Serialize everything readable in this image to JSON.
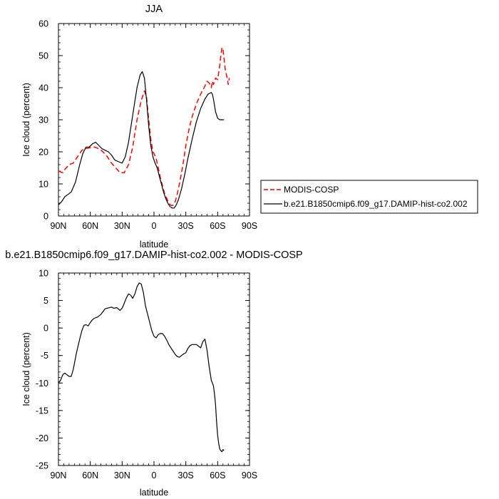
{
  "chart_data": [
    {
      "type": "line",
      "title": "JJA",
      "xlabel": "latitude",
      "ylabel": "Ice cloud (percent)",
      "xlim": [
        90,
        -90
      ],
      "ylim": [
        0,
        60
      ],
      "x_tick_values": [
        90,
        60,
        30,
        0,
        -30,
        -60,
        -90
      ],
      "x_tick_labels": [
        "90N",
        "60N",
        "30N",
        "0",
        "30S",
        "60S",
        "90S"
      ],
      "y_tick_values": [
        0,
        10,
        20,
        30,
        40,
        50,
        60
      ],
      "y_tick_labels": [
        "0",
        "10",
        "20",
        "30",
        "40",
        "50",
        "60"
      ],
      "legend_position": "right",
      "series": [
        {
          "name": "MODIS-COSP",
          "color": "#ff0000",
          "dash": "dashed",
          "x": [
            90,
            86,
            84,
            80,
            76,
            72,
            68,
            64,
            60,
            56,
            52,
            48,
            44,
            40,
            36,
            32,
            28,
            24,
            20,
            16,
            12,
            9,
            7,
            5,
            3,
            1,
            0,
            -2,
            -4,
            -6,
            -8,
            -10,
            -12,
            -14,
            -16,
            -18,
            -20,
            -22,
            -24,
            -26,
            -28,
            -30,
            -33,
            -36,
            -40,
            -44,
            -48,
            -50,
            -52,
            -54,
            -55,
            -56,
            -58,
            -60,
            -62,
            -63,
            -64,
            -65,
            -66,
            -67,
            -68,
            -69,
            -70,
            -71
          ],
          "y": [
            14,
            13.5,
            14.5,
            16,
            16.5,
            18.5,
            20.5,
            21,
            21.3,
            21.5,
            21,
            20,
            18.5,
            16.5,
            15,
            13.5,
            13.5,
            16,
            21.5,
            30,
            36,
            39,
            37,
            30,
            24,
            20,
            19.5,
            18,
            15,
            12,
            9.5,
            7,
            5.5,
            4,
            3.3,
            3.3,
            4.5,
            7,
            10,
            13.5,
            17.5,
            22,
            27,
            31,
            35,
            38,
            40.5,
            42,
            41.5,
            40,
            42,
            41,
            43,
            42.5,
            47,
            50,
            52.5,
            52,
            49,
            46,
            44.5,
            43,
            41,
            43
          ]
        },
        {
          "name": "b.e21.B1850cmip6.f09_g17.DAMIP-hist-co2.002",
          "color": "#000000",
          "dash": "solid",
          "x": [
            90,
            87,
            84,
            82,
            78,
            74,
            70,
            67,
            64,
            61,
            58,
            55,
            52,
            49,
            46,
            43,
            40,
            37,
            34,
            30,
            27,
            24,
            20,
            16,
            13,
            11,
            9,
            7,
            5,
            3,
            1,
            -1,
            -3,
            -5,
            -7,
            -9,
            -11,
            -13,
            -15,
            -17,
            -19,
            -21,
            -23,
            -26,
            -29,
            -32,
            -36,
            -40,
            -44,
            -48,
            -51,
            -54,
            -55,
            -56,
            -57,
            -58,
            -60,
            -62,
            -64,
            -66
          ],
          "y": [
            3.5,
            4.5,
            6,
            6.5,
            7.5,
            10.5,
            16,
            19.5,
            21.5,
            21.5,
            22.5,
            23,
            22,
            21,
            20.5,
            20,
            19,
            17.5,
            17,
            16.5,
            18.5,
            23,
            31.5,
            40,
            44,
            45,
            43,
            36,
            28,
            22,
            18.5,
            16.5,
            15,
            12.5,
            10,
            7.5,
            5.5,
            4,
            3,
            2.5,
            2.5,
            3.5,
            5,
            8.5,
            13,
            18,
            24,
            29.5,
            33.5,
            36.5,
            38,
            38.5,
            38,
            36.5,
            34.5,
            32.5,
            30.5,
            30,
            30,
            30
          ]
        }
      ]
    },
    {
      "type": "line",
      "title": "b.e21.B1850cmip6.f09_g17.DAMIP-hist-co2.002 - MODIS-COSP",
      "xlabel": "latitude",
      "ylabel": "Ice cloud (percent)",
      "xlim": [
        90,
        -90
      ],
      "ylim": [
        -25,
        10
      ],
      "x_tick_values": [
        90,
        60,
        30,
        0,
        -30,
        -60,
        -90
      ],
      "x_tick_labels": [
        "90N",
        "60N",
        "30N",
        "0",
        "30S",
        "60S",
        "90S"
      ],
      "y_tick_values": [
        10,
        5,
        0,
        -5,
        -10,
        -15,
        -20,
        -25
      ],
      "y_tick_labels": [
        "10",
        "5",
        "0",
        "-5",
        "-10",
        "-15",
        "-20",
        "-25"
      ],
      "series": [
        {
          "color": "#000000",
          "dash": "solid",
          "x": [
            90,
            88,
            86,
            84,
            82,
            80,
            78,
            76,
            73,
            70,
            68,
            66,
            64,
            62,
            60,
            58,
            56,
            53,
            50,
            46,
            42,
            40,
            38,
            35,
            32,
            30,
            28,
            26,
            24,
            22,
            20,
            18,
            16,
            14,
            12,
            10,
            8,
            6,
            4,
            2,
            0,
            -2,
            -4,
            -6,
            -8,
            -10,
            -12,
            -14,
            -16,
            -18,
            -20,
            -22,
            -24,
            -26,
            -28,
            -30,
            -32,
            -34,
            -36,
            -38,
            -40,
            -42,
            -44,
            -46,
            -48,
            -50,
            -52,
            -54,
            -56,
            -57,
            -58,
            -59,
            -60,
            -61,
            -62,
            -63,
            -64,
            -65,
            -66
          ],
          "y": [
            -10,
            -9.5,
            -8.5,
            -8.2,
            -8.5,
            -8.8,
            -8.8,
            -7.5,
            -4.5,
            -2,
            -0.5,
            0.5,
            0.6,
            0.4,
            1,
            1.5,
            1.8,
            2,
            2.5,
            3.5,
            3.7,
            3.8,
            3.6,
            3.7,
            3.2,
            3.6,
            4.5,
            5.5,
            6.2,
            6,
            5.4,
            6.2,
            7.5,
            8.2,
            8,
            6.5,
            4,
            2.5,
            1,
            -0.5,
            -1.5,
            -1.8,
            -1.2,
            -1,
            -1,
            -1.5,
            -2.2,
            -3,
            -3.6,
            -4.2,
            -4.8,
            -5.2,
            -5.3,
            -5,
            -4.7,
            -4.5,
            -3.7,
            -3.2,
            -3,
            -3,
            -3,
            -3.3,
            -3.6,
            -2.5,
            -2,
            -4,
            -7,
            -9.5,
            -10.5,
            -12,
            -14,
            -17,
            -19.5,
            -21,
            -22,
            -22.3,
            -22.5,
            -22.1,
            -22.3
          ]
        }
      ]
    }
  ]
}
